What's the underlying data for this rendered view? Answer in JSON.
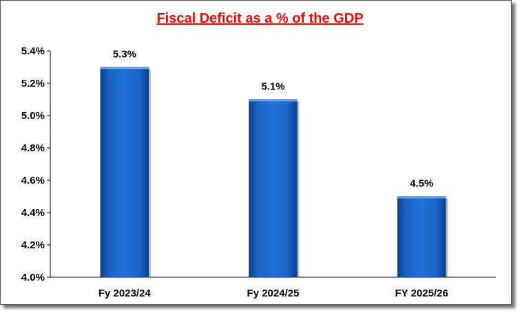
{
  "chart_data": {
    "type": "bar",
    "title": "Fiscal Deficit as a % of the GDP",
    "categories": [
      "Fy 2023/24",
      "Fy 2024/25",
      "FY 2025/26"
    ],
    "values": [
      5.3,
      5.1,
      4.5
    ],
    "data_labels": [
      "5.3%",
      "5.1%",
      "4.5%"
    ],
    "y_ticks": [
      "4.0%",
      "4.2%",
      "4.4%",
      "4.6%",
      "4.8%",
      "5.0%",
      "5.2%",
      "5.4%"
    ],
    "ylim": [
      4.0,
      5.4
    ],
    "xlabel": "",
    "ylabel": "",
    "grid": false,
    "legend": "none",
    "bar_color": "#1f6fd6",
    "title_color": "#ff0000"
  }
}
